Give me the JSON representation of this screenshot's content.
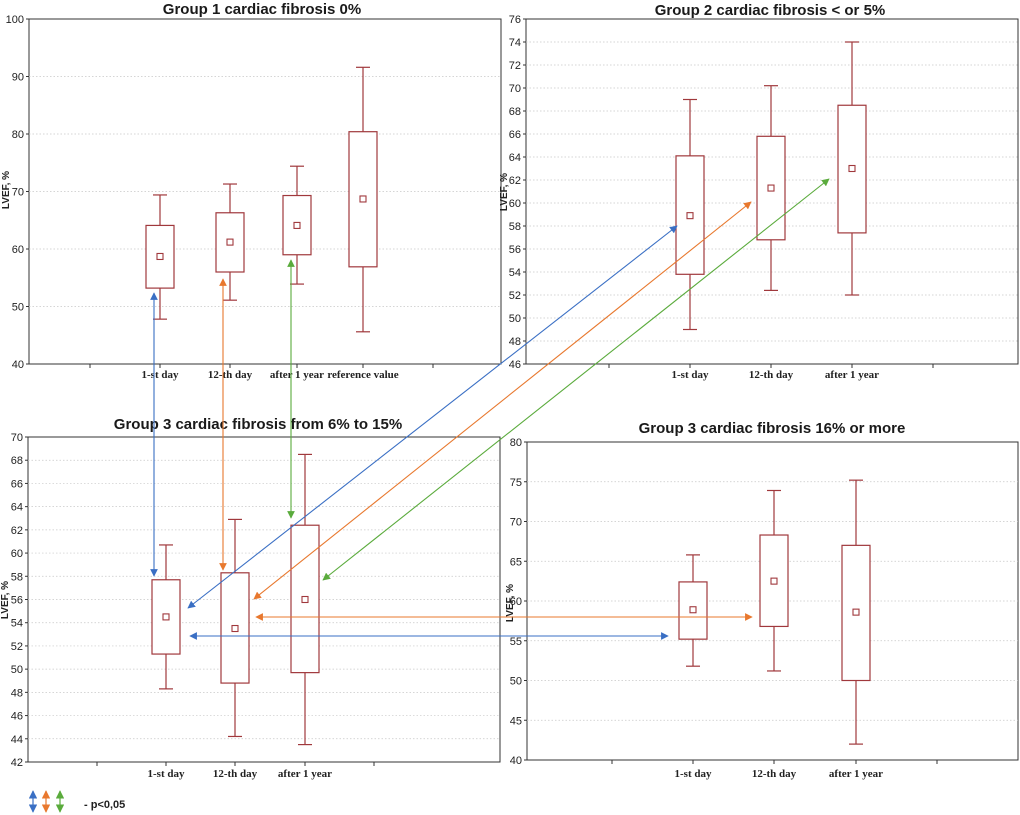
{
  "chart_data": [
    {
      "type": "box",
      "title": "Group 1 cardiac fibrosis 0%",
      "ylabel": "LVEF, %",
      "ylim": [
        40,
        100
      ],
      "yticks": [
        40,
        50,
        60,
        70,
        80,
        90,
        100
      ],
      "categories": [
        "1-st day",
        "12-th day",
        "after 1 year",
        "reference value"
      ],
      "boxes": [
        {
          "whisker_low": 47.8,
          "q1": 53.2,
          "median": 58.7,
          "q3": 64.1,
          "whisker_high": 69.4
        },
        {
          "whisker_low": 51.1,
          "q1": 56.0,
          "median": 61.2,
          "q3": 66.3,
          "whisker_high": 71.3
        },
        {
          "whisker_low": 53.9,
          "q1": 59.0,
          "median": 64.1,
          "q3": 69.3,
          "whisker_high": 74.4
        },
        {
          "whisker_low": 45.6,
          "q1": 56.9,
          "median": 68.7,
          "q3": 80.4,
          "whisker_high": 91.6
        }
      ]
    },
    {
      "type": "box",
      "title": "Group 2 cardiac fibrosis < or 5%",
      "ylabel": "LVEF, %",
      "ylim": [
        46,
        76
      ],
      "yticks": [
        46,
        48,
        50,
        52,
        54,
        56,
        58,
        60,
        62,
        64,
        66,
        68,
        70,
        72,
        74,
        76
      ],
      "categories": [
        "1-st day",
        "12-th day",
        "after 1 year"
      ],
      "boxes": [
        {
          "whisker_low": 49.0,
          "q1": 53.8,
          "median": 58.9,
          "q3": 64.1,
          "whisker_high": 69.0
        },
        {
          "whisker_low": 52.4,
          "q1": 56.8,
          "median": 61.3,
          "q3": 65.8,
          "whisker_high": 70.2
        },
        {
          "whisker_low": 52.0,
          "q1": 57.4,
          "median": 63.0,
          "q3": 68.5,
          "whisker_high": 74.0
        }
      ]
    },
    {
      "type": "box",
      "title": "Group 3 cardiac fibrosis from 6% to 15%",
      "ylabel": "LVEF, %",
      "ylim": [
        42,
        70
      ],
      "yticks": [
        42,
        44,
        46,
        48,
        50,
        52,
        54,
        56,
        58,
        60,
        62,
        64,
        66,
        68,
        70
      ],
      "categories": [
        "1-st day",
        "12-th day",
        "after 1 year"
      ],
      "boxes": [
        {
          "whisker_low": 48.3,
          "q1": 51.3,
          "median": 54.5,
          "q3": 57.7,
          "whisker_high": 60.7
        },
        {
          "whisker_low": 44.2,
          "q1": 48.8,
          "median": 53.5,
          "q3": 58.3,
          "whisker_high": 62.9
        },
        {
          "whisker_low": 43.5,
          "q1": 49.7,
          "median": 56.0,
          "q3": 62.4,
          "whisker_high": 68.5
        }
      ]
    },
    {
      "type": "box",
      "title": "Group 3 cardiac fibrosis 16% or more",
      "ylabel": "LVEF, %",
      "ylim": [
        40,
        80
      ],
      "yticks": [
        40,
        45,
        50,
        55,
        60,
        65,
        70,
        75,
        80
      ],
      "categories": [
        "1-st day",
        "12-th day",
        "after 1 year"
      ],
      "boxes": [
        {
          "whisker_low": 51.8,
          "q1": 55.2,
          "median": 58.9,
          "q3": 62.4,
          "whisker_high": 65.8
        },
        {
          "whisker_low": 51.2,
          "q1": 56.8,
          "median": 62.5,
          "q3": 68.3,
          "whisker_high": 73.9
        },
        {
          "whisker_low": 42.0,
          "q1": 50.0,
          "median": 58.6,
          "q3": 67.0,
          "whisker_high": 75.2
        }
      ]
    }
  ],
  "significance_links": [
    {
      "color": "blue",
      "from": {
        "panel": 0,
        "box": 0
      },
      "to": {
        "panel": 2,
        "box": 0
      }
    },
    {
      "color": "orange",
      "from": {
        "panel": 0,
        "box": 1
      },
      "to": {
        "panel": 2,
        "box": 1
      }
    },
    {
      "color": "green",
      "from": {
        "panel": 0,
        "box": 2
      },
      "to": {
        "panel": 2,
        "box": 2
      }
    },
    {
      "color": "blue",
      "from": {
        "panel": 1,
        "box": 0
      },
      "to": {
        "panel": 2,
        "box": 0
      }
    },
    {
      "color": "orange",
      "from": {
        "panel": 1,
        "box": 1
      },
      "to": {
        "panel": 2,
        "box": 1
      }
    },
    {
      "color": "green",
      "from": {
        "panel": 1,
        "box": 2
      },
      "to": {
        "panel": 2,
        "box": 2
      }
    },
    {
      "color": "orange",
      "from": {
        "panel": 2,
        "box": 1
      },
      "to": {
        "panel": 3,
        "box": 1
      }
    },
    {
      "color": "blue",
      "from": {
        "panel": 2,
        "box": 0
      },
      "to": {
        "panel": 3,
        "box": 0
      }
    }
  ],
  "legend": {
    "label": "- p<0,05"
  },
  "colors": {
    "box": "#a0383c",
    "marker": "#a0383c",
    "grid": "#c8c8c8",
    "blue": "#3a6fc4",
    "orange": "#e8782e",
    "green": "#5aab3c"
  }
}
